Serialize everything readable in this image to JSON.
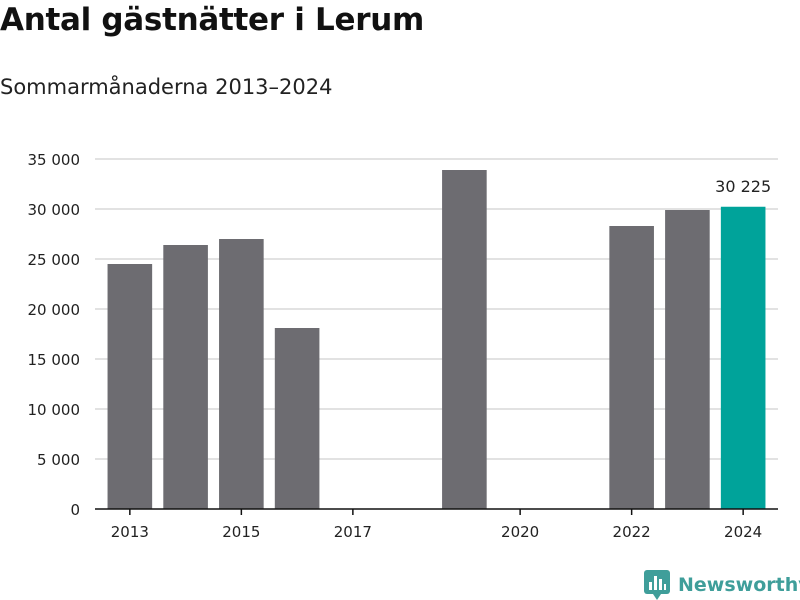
{
  "header": {
    "title": "Antal gästnätter i Lerum",
    "subtitle": "Sommarmånaderna 2013–2024"
  },
  "brand": {
    "name": "Newsworthy",
    "icon": "newsworthy-logo-icon",
    "color": "#3f9e9a"
  },
  "colors": {
    "bar": "#6d6c71",
    "highlight": "#00a39a",
    "grid": "#d9d9d9",
    "axis": "#111111"
  },
  "chart_data": {
    "type": "bar",
    "title": "Antal gästnätter i Lerum",
    "subtitle": "Sommarmånaderna 2013–2024",
    "xlabel": "",
    "ylabel": "",
    "grid": true,
    "ylim": [
      0,
      35000
    ],
    "y_ticks": [
      0,
      5000,
      10000,
      15000,
      20000,
      25000,
      30000,
      35000
    ],
    "y_tick_labels": [
      "0",
      "5 000",
      "10 000",
      "15 000",
      "20 000",
      "25 000",
      "30 000",
      "35 000"
    ],
    "x_tick_labels": [
      "2013",
      "2015",
      "2017",
      "2020",
      "2022",
      "2024"
    ],
    "categories": [
      "2013",
      "2014",
      "2015",
      "2016",
      "2017",
      "2018",
      "2019",
      "2020",
      "2021",
      "2022",
      "2023",
      "2024"
    ],
    "values": [
      24500,
      26400,
      27000,
      18100,
      null,
      null,
      33900,
      null,
      null,
      28300,
      29900,
      30225
    ],
    "highlight": "2024",
    "annotations": [
      {
        "category": "2024",
        "text": "30 225"
      }
    ]
  }
}
